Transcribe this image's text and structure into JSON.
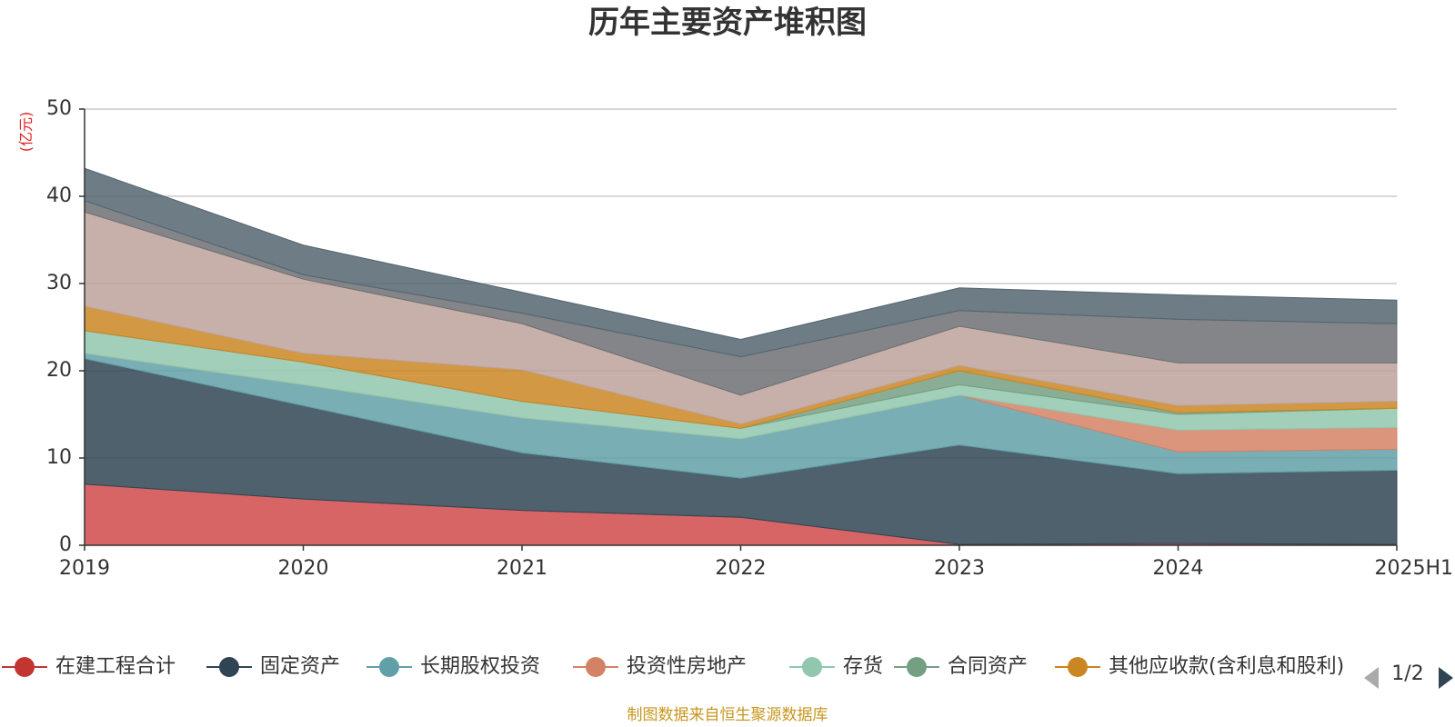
{
  "chart_data": {
    "type": "area",
    "stacked": true,
    "title": "历年主要资产堆积图",
    "ylabel": "(亿元)",
    "ylim": [
      0,
      50
    ],
    "yticks": [
      0,
      10,
      20,
      30,
      40,
      50
    ],
    "categories": [
      "2019",
      "2020",
      "2021",
      "2022",
      "2023",
      "2024",
      "2025H1"
    ],
    "grid": true,
    "series": [
      {
        "name": "在建工程合计",
        "color": "#d14a4a",
        "marker_color": "#c23531",
        "values": [
          7.0,
          5.3,
          4.0,
          3.2,
          0.1,
          0.2,
          0.1
        ]
      },
      {
        "name": "固定资产",
        "color": "#2f4554",
        "marker_color": "#2f4554",
        "values": [
          14.4,
          10.7,
          6.6,
          4.5,
          11.4,
          8.0,
          8.5
        ]
      },
      {
        "name": "长期股权投资",
        "color": "#61a0a8",
        "marker_color": "#61a0a8",
        "values": [
          0.6,
          2.4,
          4.0,
          4.5,
          5.7,
          2.5,
          2.4
        ]
      },
      {
        "name": "投资性房地产",
        "color": "#d48265",
        "marker_color": "#d48265",
        "values": [
          0.0,
          0.0,
          0.0,
          0.0,
          0.0,
          2.5,
          2.5
        ]
      },
      {
        "name": "存货",
        "color": "#91c7ae",
        "marker_color": "#91c7ae",
        "values": [
          2.6,
          2.6,
          1.9,
          1.2,
          1.2,
          1.8,
          2.2
        ]
      },
      {
        "name": "合同资产",
        "color": "#749f83",
        "marker_color": "#749f83",
        "values": [
          0.0,
          0.0,
          0.0,
          0.0,
          1.6,
          0.2,
          0.0
        ]
      },
      {
        "name": "其他应收款(含利息和股利)",
        "color": "#ca8622",
        "marker_color": "#ca8622",
        "values": [
          2.8,
          1.0,
          3.6,
          0.5,
          0.6,
          0.8,
          0.8
        ]
      },
      {
        "name": "",
        "color": "#bda29a",
        "values": [
          10.8,
          8.5,
          5.3,
          3.3,
          4.5,
          4.9,
          4.4
        ]
      },
      {
        "name": "",
        "color": "#6e7074",
        "values": [
          1.3,
          0.5,
          1.2,
          4.4,
          1.8,
          5.0,
          4.5
        ]
      },
      {
        "name": "",
        "color": "#546570",
        "values": [
          3.7,
          3.4,
          2.4,
          2.0,
          2.6,
          2.8,
          2.7
        ]
      }
    ],
    "legend": {
      "placement": "bottom",
      "visible_items": [
        "在建工程合计",
        "固定资产",
        "长期股权投资",
        "投资性房地产",
        "存货",
        "合同资产",
        "其他应收款(含利息和股利)"
      ],
      "page": "1/2"
    }
  },
  "footer": {
    "source": "制图数据来自恒生聚源数据库"
  }
}
